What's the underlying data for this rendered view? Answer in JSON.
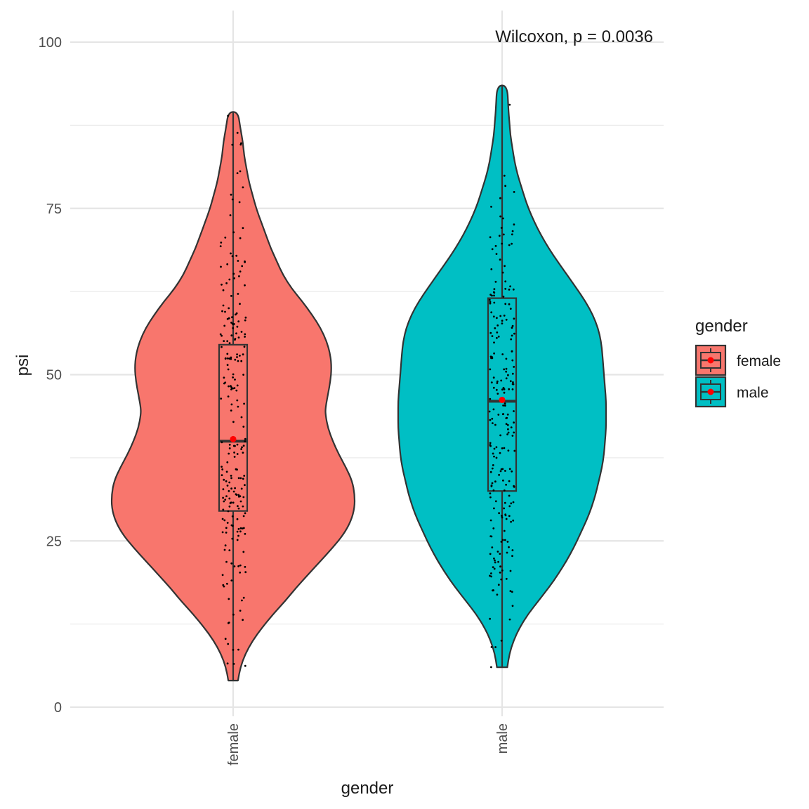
{
  "chart_data": {
    "type": "violin",
    "xlabel": "gender",
    "ylabel": "psi",
    "categories": [
      "female",
      "male"
    ],
    "ylim": [
      0,
      100
    ],
    "yticks": [
      0,
      25,
      50,
      75,
      100
    ],
    "ytick_labels": [
      "0",
      "25",
      "50",
      "75",
      "100"
    ],
    "grid": true,
    "annotation": "Wilcoxon, p = 0.0036",
    "legend": {
      "title": "gender",
      "position": "right",
      "entries": [
        {
          "label": "female",
          "color": "#F8766D"
        },
        {
          "label": "male",
          "color": "#00BFC4"
        }
      ]
    },
    "series": [
      {
        "name": "female",
        "color": "#F8766D",
        "min": 4,
        "max": 89.5,
        "box": {
          "q1": 29.5,
          "median": 40,
          "q3": 54.5
        },
        "mean": 40.3,
        "density": [
          [
            4,
            0.04
          ],
          [
            6,
            0.06
          ],
          [
            8,
            0.1
          ],
          [
            10,
            0.16
          ],
          [
            12,
            0.24
          ],
          [
            14,
            0.33
          ],
          [
            16,
            0.43
          ],
          [
            18,
            0.52
          ],
          [
            20,
            0.62
          ],
          [
            22,
            0.72
          ],
          [
            24,
            0.82
          ],
          [
            26,
            0.91
          ],
          [
            28,
            0.97
          ],
          [
            30,
            1.0
          ],
          [
            32,
            1.0
          ],
          [
            34,
            0.98
          ],
          [
            36,
            0.93
          ],
          [
            38,
            0.87
          ],
          [
            40,
            0.82
          ],
          [
            42,
            0.78
          ],
          [
            44,
            0.76
          ],
          [
            45,
            0.76
          ],
          [
            47,
            0.78
          ],
          [
            49,
            0.8
          ],
          [
            51,
            0.81
          ],
          [
            53,
            0.8
          ],
          [
            55,
            0.77
          ],
          [
            57,
            0.72
          ],
          [
            59,
            0.65
          ],
          [
            61,
            0.57
          ],
          [
            63,
            0.48
          ],
          [
            65,
            0.41
          ],
          [
            67,
            0.36
          ],
          [
            69,
            0.31
          ],
          [
            71,
            0.27
          ],
          [
            73,
            0.23
          ],
          [
            75,
            0.19
          ],
          [
            77,
            0.16
          ],
          [
            79,
            0.13
          ],
          [
            81,
            0.11
          ],
          [
            83,
            0.09
          ],
          [
            85,
            0.08
          ],
          [
            87,
            0.06
          ],
          [
            89.5,
            0.04
          ]
        ],
        "n_points": 230
      },
      {
        "name": "male",
        "color": "#00BFC4",
        "min": 6,
        "max": 93.5,
        "box": {
          "q1": 32.5,
          "median": 46,
          "q3": 61.5
        },
        "mean": 46.2,
        "density": [
          [
            6,
            0.05
          ],
          [
            8,
            0.07
          ],
          [
            10,
            0.11
          ],
          [
            12,
            0.17
          ],
          [
            14,
            0.25
          ],
          [
            16,
            0.35
          ],
          [
            18,
            0.45
          ],
          [
            20,
            0.54
          ],
          [
            22,
            0.62
          ],
          [
            24,
            0.69
          ],
          [
            26,
            0.75
          ],
          [
            28,
            0.81
          ],
          [
            30,
            0.86
          ],
          [
            32,
            0.9
          ],
          [
            34,
            0.93
          ],
          [
            36,
            0.96
          ],
          [
            38,
            0.98
          ],
          [
            40,
            0.99
          ],
          [
            42,
            1.0
          ],
          [
            44,
            1.0
          ],
          [
            46,
            1.0
          ],
          [
            48,
            0.99
          ],
          [
            50,
            0.98
          ],
          [
            52,
            0.97
          ],
          [
            54,
            0.96
          ],
          [
            56,
            0.94
          ],
          [
            58,
            0.9
          ],
          [
            60,
            0.84
          ],
          [
            62,
            0.76
          ],
          [
            64,
            0.67
          ],
          [
            66,
            0.58
          ],
          [
            68,
            0.49
          ],
          [
            70,
            0.41
          ],
          [
            72,
            0.34
          ],
          [
            74,
            0.28
          ],
          [
            76,
            0.23
          ],
          [
            78,
            0.19
          ],
          [
            80,
            0.15
          ],
          [
            82,
            0.12
          ],
          [
            84,
            0.1
          ],
          [
            86,
            0.08
          ],
          [
            88,
            0.07
          ],
          [
            90,
            0.06
          ],
          [
            93.5,
            0.05
          ]
        ],
        "n_points": 230
      }
    ]
  }
}
